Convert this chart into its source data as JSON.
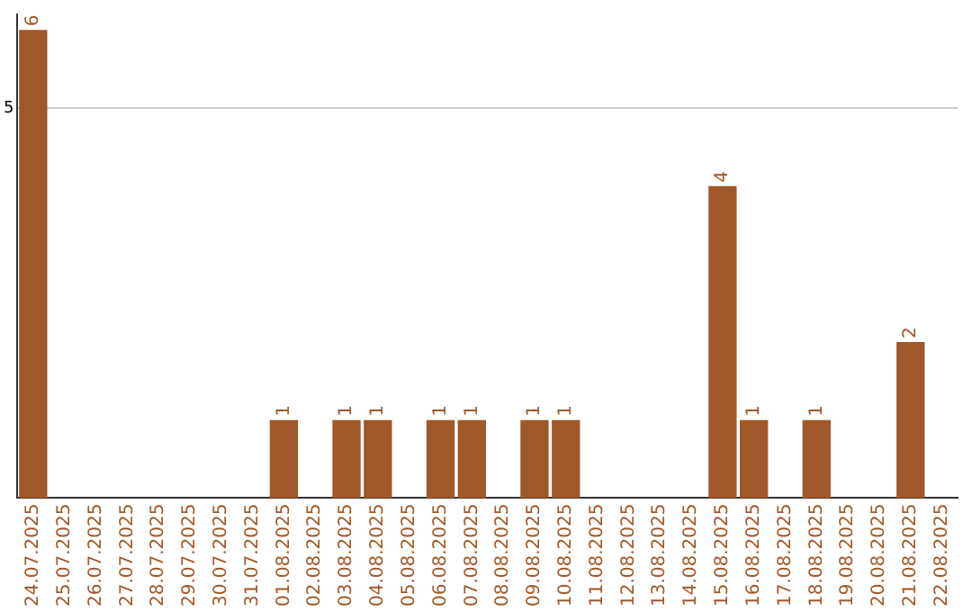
{
  "chart_data": {
    "type": "bar",
    "categories": [
      "24.07.2025",
      "25.07.2025",
      "26.07.2025",
      "27.07.2025",
      "28.07.2025",
      "29.07.2025",
      "30.07.2025",
      "31.07.2025",
      "01.08.2025",
      "02.08.2025",
      "03.08.2025",
      "04.08.2025",
      "05.08.2025",
      "06.08.2025",
      "07.08.2025",
      "08.08.2025",
      "09.08.2025",
      "10.08.2025",
      "11.08.2025",
      "12.08.2025",
      "13.08.2025",
      "14.08.2025",
      "15.08.2025",
      "16.08.2025",
      "17.08.2025",
      "18.08.2025",
      "19.08.2025",
      "20.08.2025",
      "21.08.2025",
      "22.08.2025"
    ],
    "values": [
      6,
      0,
      0,
      0,
      0,
      0,
      0,
      0,
      1,
      0,
      1,
      1,
      0,
      1,
      1,
      0,
      1,
      1,
      0,
      0,
      0,
      0,
      4,
      1,
      0,
      1,
      0,
      0,
      2,
      0
    ],
    "value_labels": [
      "6",
      null,
      null,
      null,
      null,
      null,
      null,
      null,
      "1",
      null,
      "1",
      "1",
      null,
      "1",
      "1",
      null,
      "1",
      "1",
      null,
      null,
      null,
      null,
      "4",
      "1",
      null,
      "1",
      null,
      null,
      "2",
      null
    ],
    "color": "#a0582a",
    "ylim": [
      0,
      6.2
    ],
    "yticks": [
      5
    ],
    "grid": "y",
    "legend": false
  }
}
